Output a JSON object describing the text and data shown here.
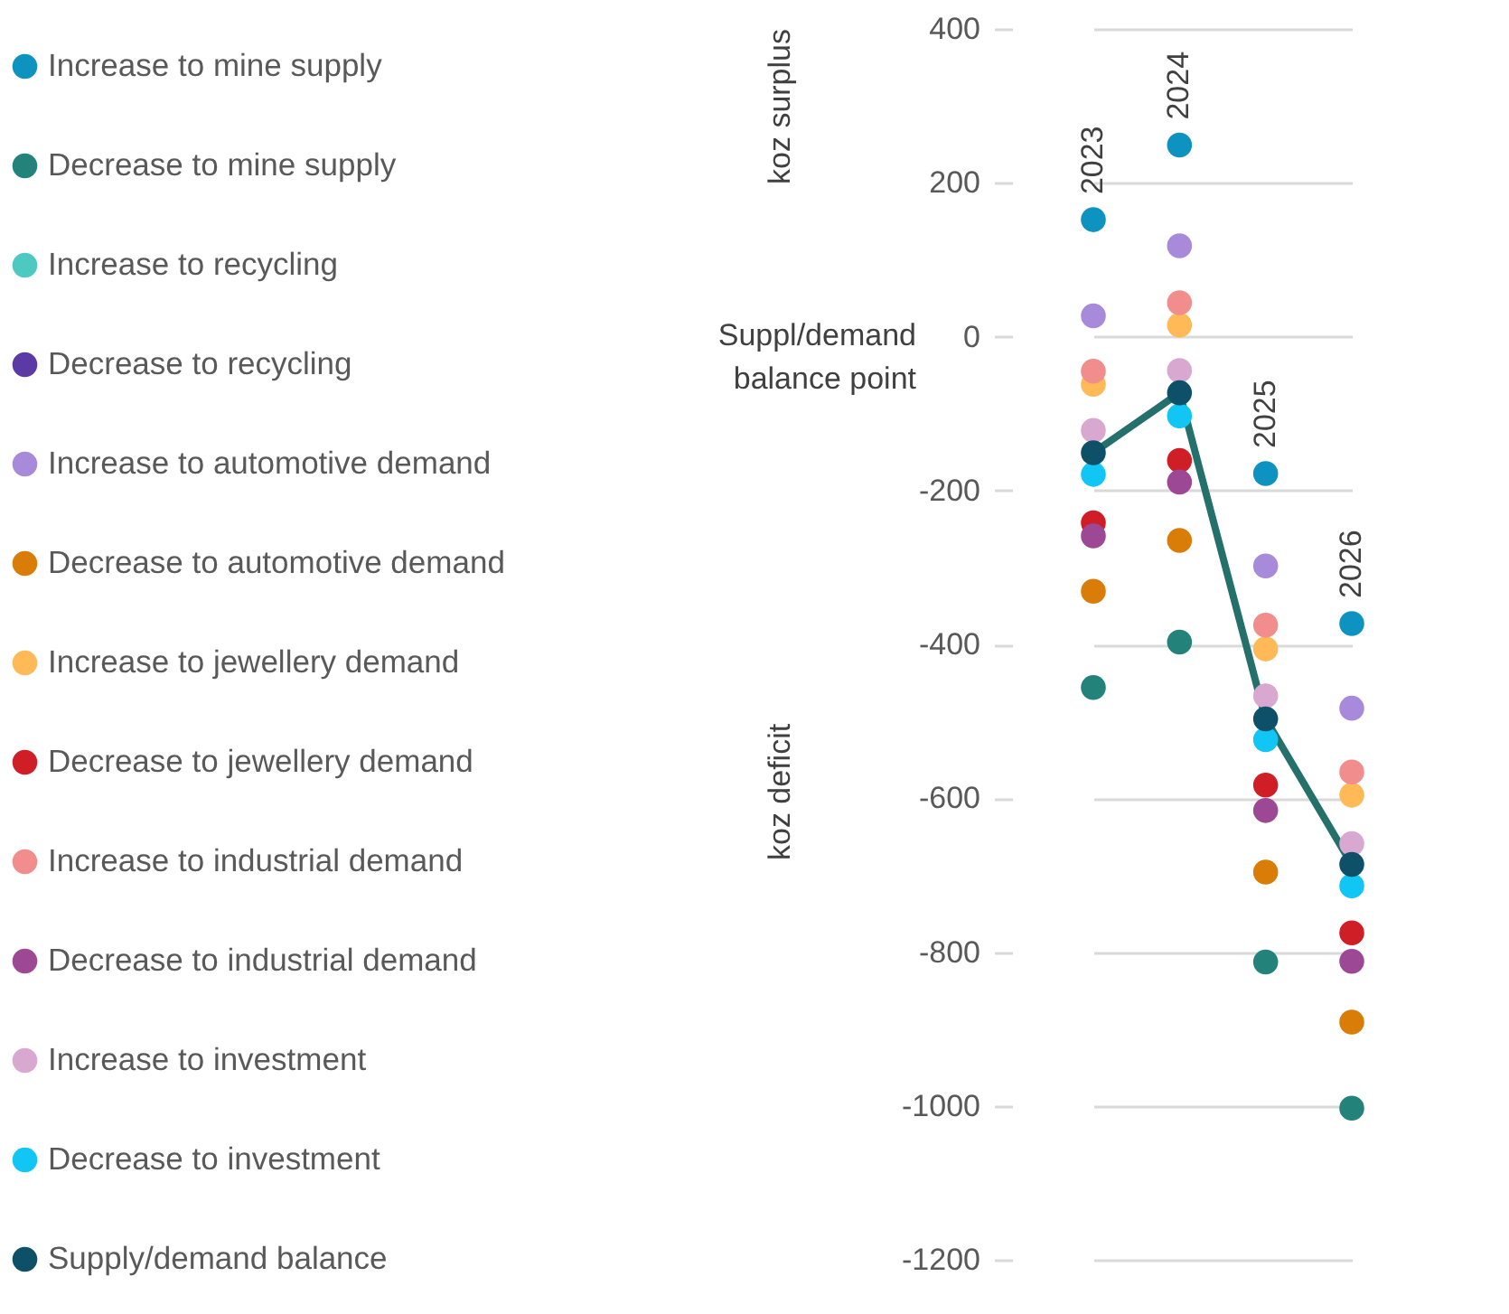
{
  "chart_data": {
    "type": "scatter",
    "categories": [
      "2023",
      "2024",
      "2025",
      "2026"
    ],
    "series": [
      {
        "name": "Increase to mine supply",
        "color": "#0e93c0",
        "values": [
          152,
          249,
          -178,
          -373
        ]
      },
      {
        "name": "Decrease to mine supply",
        "color": "#23827a",
        "values": [
          -456,
          -397,
          -813,
          -1003
        ]
      },
      {
        "name": "Increase to recycling",
        "color": "#4ec9c1",
        "values": [
          null,
          null,
          null,
          null
        ]
      },
      {
        "name": "Decrease to recycling",
        "color": "#5c3aa6",
        "values": [
          null,
          null,
          null,
          null
        ]
      },
      {
        "name": "Increase to automotive demand",
        "color": "#a88ada",
        "values": [
          27,
          118,
          -298,
          -483
        ]
      },
      {
        "name": "Decrease to automotive demand",
        "color": "#d97d08",
        "values": [
          -331,
          -265,
          -696,
          -891
        ]
      },
      {
        "name": "Increase to jewellery demand",
        "color": "#ffb957",
        "values": [
          -62,
          15,
          -406,
          -596
        ]
      },
      {
        "name": "Decrease to jewellery demand",
        "color": "#d01e27",
        "values": [
          -242,
          -161,
          -583,
          -775
        ]
      },
      {
        "name": "Increase to industrial demand",
        "color": "#f18d8c",
        "values": [
          -45,
          44,
          -375,
          -566
        ]
      },
      {
        "name": "Decrease to industrial demand",
        "color": "#9c4894",
        "values": [
          -259,
          -189,
          -616,
          -812
        ]
      },
      {
        "name": "Increase to investment",
        "color": "#d9a8d0",
        "values": [
          -122,
          -44,
          -467,
          -659
        ]
      },
      {
        "name": "Decrease to investment",
        "color": "#11c5f4",
        "values": [
          -179,
          -103,
          -524,
          -714
        ]
      },
      {
        "name": "Supply/demand balance",
        "type": "line",
        "marker": "circle",
        "color": "#24706b",
        "values": [
          -151,
          -73,
          -497,
          -686
        ]
      }
    ],
    "ylim": [
      -1200,
      400
    ],
    "yticks": [
      -1200,
      -1000,
      -800,
      -600,
      -400,
      -200,
      0,
      200,
      400
    ],
    "grid": "y",
    "legend": "left",
    "annotations": [
      "koz surplus",
      "Suppl/demand balance point",
      "koz deficit"
    ]
  }
}
